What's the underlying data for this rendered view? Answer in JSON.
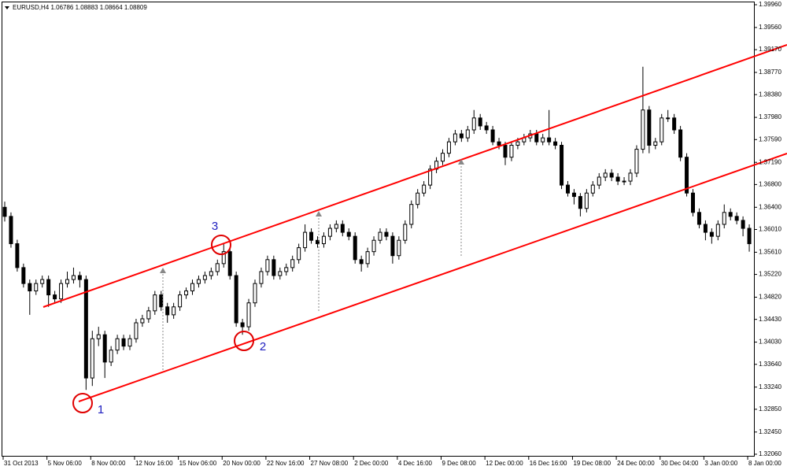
{
  "chart_data": {
    "type": "candlestick",
    "title": "EURUSD,H4  1.06786 1.08883 1.08664 1.08809",
    "categories": [
      "31 Oct 2013",
      null,
      null,
      null,
      null,
      null,
      null,
      "5 Nov 06:00",
      null,
      null,
      null,
      null,
      null,
      null,
      "8 Nov 00:00",
      null,
      null,
      null,
      null,
      null,
      null,
      "12 Nov 16:00",
      null,
      null,
      null,
      null,
      null,
      null,
      "15 Nov 06:00",
      null,
      null,
      null,
      null,
      null,
      null,
      "20 Nov 00:00",
      null,
      null,
      null,
      null,
      null,
      null,
      "22 Nov 16:00",
      null,
      null,
      null,
      null,
      null,
      null,
      "27 Nov 08:00",
      null,
      null,
      null,
      null,
      null,
      null,
      "2 Dec 00:00",
      null,
      null,
      null,
      null,
      null,
      null,
      "4 Dec 16:00",
      null,
      null,
      null,
      null,
      null,
      null,
      "9 Dec 08:00",
      null,
      null,
      null,
      null,
      null,
      null,
      "12 Dec 00:00",
      null,
      null,
      null,
      null,
      null,
      null,
      "16 Dec 16:00",
      null,
      null,
      null,
      null,
      null,
      null,
      "19 Dec 08:00",
      null,
      null,
      null,
      null,
      null,
      null,
      "24 Dec 00:00",
      null,
      null,
      null,
      null,
      null,
      null,
      "30 Dec 04:00",
      null,
      null,
      null,
      null,
      null,
      null,
      "3 Jan 00:00",
      null,
      null,
      null,
      null,
      null,
      null,
      "8 Jan 00:00"
    ],
    "open": [
      1.364,
      1.3624,
      1.3576,
      1.3534,
      1.3506,
      1.3493,
      1.3506,
      1.3513,
      1.3486,
      1.3479,
      1.3506,
      1.3513,
      1.352,
      1.3513,
      1.334,
      1.3409,
      1.3416,
      1.3368,
      1.3389,
      1.3409,
      1.3396,
      1.3409,
      1.3437,
      1.3444,
      1.3458,
      1.3486,
      1.3465,
      1.3451,
      1.3465,
      1.3486,
      1.3493,
      1.3506,
      1.3513,
      1.352,
      1.3527,
      1.3541,
      1.3562,
      1.352,
      1.3437,
      1.343,
      1.3472,
      1.3506,
      1.3527,
      1.3548,
      1.352,
      1.3527,
      1.3534,
      1.3548,
      1.3569,
      1.3596,
      1.3582,
      1.3576,
      1.3589,
      1.3603,
      1.361,
      1.3596,
      1.3589,
      1.3548,
      1.3541,
      1.3562,
      1.3582,
      1.3596,
      1.3589,
      1.3555,
      1.3582,
      1.361,
      1.3645,
      1.3665,
      1.3679,
      1.3707,
      1.3721,
      1.3735,
      1.3755,
      1.3769,
      1.3762,
      1.3776,
      1.3797,
      1.3783,
      1.3776,
      1.3755,
      1.3749,
      1.3728,
      1.3749,
      1.3755,
      1.3762,
      1.3769,
      1.3755,
      1.3762,
      1.3755,
      1.3749,
      1.3679,
      1.3665,
      1.3659,
      1.3638,
      1.3665,
      1.3679,
      1.3693,
      1.37,
      1.3693,
      1.3686,
      1.3686,
      1.37,
      1.3742,
      1.3811,
      1.3749,
      1.3755,
      1.3797,
      1.3797,
      1.3776,
      1.3728,
      1.3665,
      1.3631,
      1.361,
      1.3596,
      1.3589,
      1.361,
      1.3631,
      1.3624,
      1.3617,
      1.3603
    ],
    "high": [
      1.365,
      1.3631,
      1.3583,
      1.3541,
      1.3513,
      1.3513,
      1.352,
      1.352,
      1.3493,
      1.3513,
      1.3527,
      1.3534,
      1.3527,
      1.352,
      1.3423,
      1.343,
      1.3423,
      1.3396,
      1.3416,
      1.3416,
      1.3416,
      1.3444,
      1.3451,
      1.3465,
      1.3493,
      1.3493,
      1.3472,
      1.3472,
      1.3493,
      1.3499,
      1.3513,
      1.352,
      1.3527,
      1.3534,
      1.3548,
      1.3576,
      1.3569,
      1.3527,
      1.3444,
      1.3479,
      1.3513,
      1.3534,
      1.3555,
      1.3555,
      1.3534,
      1.3541,
      1.3555,
      1.3576,
      1.361,
      1.3603,
      1.3589,
      1.3596,
      1.361,
      1.3617,
      1.3617,
      1.3603,
      1.3596,
      1.3555,
      1.3569,
      1.3589,
      1.3603,
      1.3603,
      1.3596,
      1.3589,
      1.3617,
      1.3652,
      1.3672,
      1.3686,
      1.3714,
      1.3728,
      1.3742,
      1.3762,
      1.3776,
      1.3776,
      1.3783,
      1.3811,
      1.3804,
      1.379,
      1.3783,
      1.3762,
      1.3755,
      1.3755,
      1.3762,
      1.3769,
      1.3776,
      1.3776,
      1.3769,
      1.3811,
      1.3762,
      1.3755,
      1.3686,
      1.3672,
      1.3665,
      1.3672,
      1.3686,
      1.37,
      1.3707,
      1.3707,
      1.37,
      1.3693,
      1.3707,
      1.3749,
      1.3887,
      1.3818,
      1.3762,
      1.3804,
      1.3811,
      1.3804,
      1.3783,
      1.3735,
      1.3672,
      1.3638,
      1.3617,
      1.3603,
      1.3617,
      1.3645,
      1.3638,
      1.3631,
      1.3624,
      1.361
    ],
    "low": [
      1.3615,
      1.3569,
      1.3527,
      1.3499,
      1.3451,
      1.3486,
      1.3499,
      1.3465,
      1.3472,
      1.3472,
      1.3499,
      1.3506,
      1.3499,
      1.3319,
      1.3326,
      1.3396,
      1.334,
      1.3361,
      1.3382,
      1.3389,
      1.3389,
      1.3402,
      1.343,
      1.3437,
      1.3451,
      1.3458,
      1.3437,
      1.3444,
      1.3458,
      1.3479,
      1.3486,
      1.3499,
      1.3506,
      1.3513,
      1.352,
      1.3534,
      1.3513,
      1.343,
      1.3416,
      1.3423,
      1.3465,
      1.3499,
      1.352,
      1.3513,
      1.3513,
      1.352,
      1.3527,
      1.3541,
      1.3562,
      1.3576,
      1.3569,
      1.3569,
      1.3582,
      1.3596,
      1.3589,
      1.3582,
      1.3541,
      1.3527,
      1.3534,
      1.3555,
      1.3576,
      1.3582,
      1.3541,
      1.3548,
      1.3576,
      1.3603,
      1.3638,
      1.3659,
      1.3672,
      1.37,
      1.3714,
      1.3728,
      1.3749,
      1.3755,
      1.3755,
      1.3769,
      1.3776,
      1.3769,
      1.3749,
      1.3742,
      1.3714,
      1.3721,
      1.3742,
      1.3749,
      1.3755,
      1.3749,
      1.3749,
      1.3749,
      1.3742,
      1.3672,
      1.3659,
      1.3645,
      1.3624,
      1.3631,
      1.3659,
      1.3672,
      1.3686,
      1.3686,
      1.3679,
      1.3679,
      1.3679,
      1.3693,
      1.3735,
      1.3735,
      1.3742,
      1.3749,
      1.379,
      1.3769,
      1.3721,
      1.3659,
      1.3624,
      1.3603,
      1.3582,
      1.3576,
      1.3582,
      1.3603,
      1.3617,
      1.361,
      1.3589,
      1.3562
    ],
    "close": [
      1.3624,
      1.3576,
      1.3534,
      1.3506,
      1.3493,
      1.3506,
      1.3513,
      1.3486,
      1.3479,
      1.3506,
      1.3513,
      1.352,
      1.3513,
      1.334,
      1.3409,
      1.3416,
      1.3368,
      1.3389,
      1.3409,
      1.3396,
      1.3409,
      1.3437,
      1.3444,
      1.3458,
      1.3486,
      1.3465,
      1.3451,
      1.3465,
      1.3486,
      1.3493,
      1.3506,
      1.3513,
      1.352,
      1.3527,
      1.3541,
      1.3562,
      1.352,
      1.3437,
      1.343,
      1.3472,
      1.3506,
      1.3527,
      1.3548,
      1.352,
      1.3527,
      1.3534,
      1.3548,
      1.3569,
      1.3596,
      1.3582,
      1.3576,
      1.3589,
      1.3603,
      1.361,
      1.3596,
      1.3589,
      1.3548,
      1.3541,
      1.3562,
      1.3582,
      1.3596,
      1.3589,
      1.3555,
      1.3582,
      1.361,
      1.3645,
      1.3665,
      1.3679,
      1.3707,
      1.3721,
      1.3735,
      1.3755,
      1.3769,
      1.3762,
      1.3776,
      1.3797,
      1.3783,
      1.3776,
      1.3755,
      1.3749,
      1.3728,
      1.3749,
      1.3755,
      1.3762,
      1.3769,
      1.3755,
      1.3762,
      1.3755,
      1.3749,
      1.3679,
      1.3665,
      1.3659,
      1.3638,
      1.3665,
      1.3679,
      1.3693,
      1.37,
      1.3693,
      1.3686,
      1.3686,
      1.37,
      1.3742,
      1.3811,
      1.3749,
      1.3755,
      1.3797,
      1.3797,
      1.3776,
      1.3728,
      1.3665,
      1.3631,
      1.361,
      1.3596,
      1.3589,
      1.361,
      1.3631,
      1.3624,
      1.3617,
      1.3603,
      1.3576
    ],
    "ylim": [
      1.32018,
      1.40043
    ],
    "yticks": [
      {
        "value": 1.3206,
        "label": "1.32060"
      },
      {
        "value": 1.3245,
        "label": "1.32450"
      },
      {
        "value": 1.3285,
        "label": "1.32850"
      },
      {
        "value": 1.3324,
        "label": "1.33240"
      },
      {
        "value": 1.3364,
        "label": "1.33640"
      },
      {
        "value": 1.3403,
        "label": "1.34030"
      },
      {
        "value": 1.3443,
        "label": "1.34430"
      },
      {
        "value": 1.3482,
        "label": "1.34820"
      },
      {
        "value": 1.3522,
        "label": "1.35220"
      },
      {
        "value": 1.3561,
        "label": "1.35610"
      },
      {
        "value": 1.3601,
        "label": "1.36010"
      },
      {
        "value": 1.364,
        "label": "1.36400"
      },
      {
        "value": 1.368,
        "label": "1.36800"
      },
      {
        "value": 1.3719,
        "label": "1.37190"
      },
      {
        "value": 1.3759,
        "label": "1.37590"
      },
      {
        "value": 1.3798,
        "label": "1.37980"
      },
      {
        "value": 1.3838,
        "label": "1.38380"
      },
      {
        "value": 1.3877,
        "label": "1.38770"
      },
      {
        "value": 1.3917,
        "label": "1.39170"
      },
      {
        "value": 1.3956,
        "label": "1.39560"
      },
      {
        "value": 1.3996,
        "label": "1.39960"
      }
    ],
    "grid": false,
    "color": "#000000",
    "annotations": {
      "labels": [
        "1",
        "2",
        "3"
      ]
    }
  }
}
